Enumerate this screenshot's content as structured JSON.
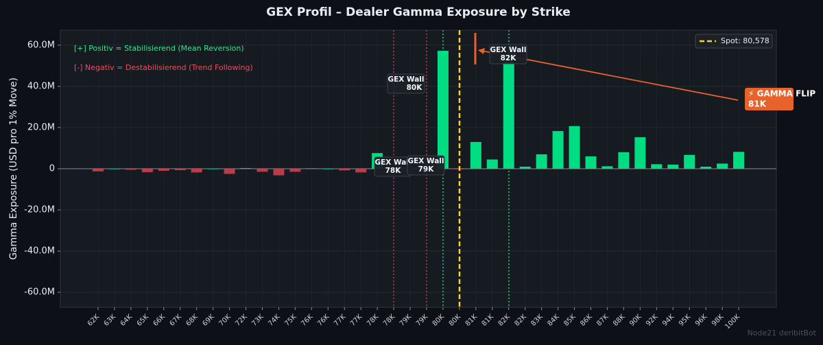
{
  "chart_data": {
    "type": "bar",
    "title": "GEX Profil – Dealer Gamma Exposure by Strike",
    "y_label": "Gamma Exposure (USD pro 1% Move)",
    "categories": [
      "62K",
      "63K",
      "64K",
      "65K",
      "66K",
      "67K",
      "68K",
      "69K",
      "70K",
      "72K",
      "73K",
      "74K",
      "75K",
      "76K",
      "76K",
      "77K",
      "77K",
      "78K",
      "78K",
      "79K",
      "79K",
      "80K",
      "80K",
      "81K",
      "81K",
      "82K",
      "82K",
      "83K",
      "84K",
      "85K",
      "86K",
      "87K",
      "88K",
      "90K",
      "92K",
      "94K",
      "95K",
      "96K",
      "98K",
      "100K"
    ],
    "values": [
      -1.3,
      0,
      -0.5,
      -1.7,
      -1.0,
      -0.7,
      -1.8,
      0,
      -2.5,
      0.3,
      -1.5,
      -3.2,
      -1.5,
      0.2,
      0,
      -0.8,
      -1.8,
      7.6,
      0,
      0,
      0,
      57.3,
      -0.3,
      13.0,
      4.5,
      52.0,
      1.0,
      7.0,
      18.3,
      20.7,
      6.0,
      1.2,
      8.0,
      15.3,
      2.2,
      2.0,
      6.7,
      1.0,
      2.5,
      8.2
    ],
    "positive_color": "#00dc82",
    "negative_color": "#d6424f",
    "ylim": [
      -67.3,
      67.3
    ],
    "yticks": [
      {
        "value": -60,
        "label": "-60.0M"
      },
      {
        "value": -40,
        "label": "-40.0M"
      },
      {
        "value": -20,
        "label": "-20.0M"
      },
      0,
      {
        "value": 20,
        "label": "20.0M"
      },
      {
        "value": 40,
        "label": "40.0M"
      },
      {
        "value": 60,
        "label": "60.0M"
      }
    ],
    "grid": true,
    "legend": {
      "position": "upper right",
      "label": "Spot: 80,578",
      "color": "#ffd21f"
    },
    "notes": [
      {
        "text": "[+] Positiv = Stabilisierend (Mean Reversion)",
        "color": "#2ee88a"
      },
      {
        "text": "[-] Negativ = Destabilisierend (Trend Following)",
        "color": "#e8505b"
      }
    ],
    "walls": [
      {
        "title": "GEX Wall",
        "strike": "80K"
      },
      {
        "title": "GEX Wall",
        "strike": "78K"
      },
      {
        "title": "GEX Wall",
        "strike": "79K"
      },
      {
        "title": "GEX Wall",
        "strike": "82K"
      }
    ],
    "gamma_flip": {
      "title": "⚡ GAMMA FLIP",
      "strike": "81K",
      "color": "#e8622c"
    },
    "watermark": "Node21 deribitBot"
  }
}
